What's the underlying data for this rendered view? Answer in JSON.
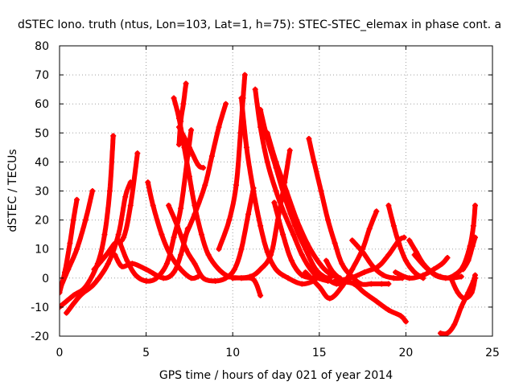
{
  "chart_data": {
    "type": "scatter",
    "title": "dSTEC Iono. truth (ntus, Lon=103, Lat=1, h=75): STEC-STEC_elemax in phase cont. a",
    "xlabel": "GPS time / hours of day 021 of year 2014",
    "ylabel": "dSTEC  / TECUs",
    "xlim": [
      0,
      25
    ],
    "ylim": [
      -20,
      80
    ],
    "xticks": [
      "0",
      "5",
      "10",
      "15",
      "20",
      "25"
    ],
    "yticks": [
      "-20",
      "-10",
      "0",
      "10",
      "20",
      "30",
      "40",
      "50",
      "60",
      "70",
      "80"
    ],
    "grid": true,
    "marker": "plus",
    "color": "#ff0000",
    "series": [
      {
        "points": [
          [
            0.0,
            -5
          ],
          [
            0.3,
            2
          ],
          [
            0.6,
            12
          ],
          [
            0.8,
            20
          ],
          [
            1.0,
            27
          ]
        ]
      },
      {
        "points": [
          [
            0.0,
            -4
          ],
          [
            0.5,
            3
          ],
          [
            1.0,
            10
          ],
          [
            1.5,
            20
          ],
          [
            1.9,
            30
          ]
        ]
      },
      {
        "points": [
          [
            0.0,
            -10
          ],
          [
            0.8,
            -6
          ],
          [
            1.5,
            -3
          ],
          [
            2.2,
            5
          ],
          [
            2.6,
            15
          ],
          [
            2.9,
            30
          ],
          [
            3.1,
            49
          ]
        ]
      },
      {
        "points": [
          [
            0.4,
            -12
          ],
          [
            1.2,
            -6
          ],
          [
            2.0,
            -2
          ],
          [
            2.8,
            5
          ],
          [
            3.4,
            15
          ],
          [
            3.8,
            28
          ],
          [
            4.1,
            33
          ]
        ]
      },
      {
        "points": [
          [
            2.0,
            3
          ],
          [
            2.7,
            8
          ],
          [
            3.2,
            12
          ],
          [
            3.7,
            14
          ],
          [
            4.1,
            25
          ],
          [
            4.5,
            43
          ]
        ]
      },
      {
        "points": [
          [
            3.2,
            8
          ],
          [
            3.6,
            4
          ],
          [
            4.2,
            5
          ],
          [
            5.0,
            3
          ],
          [
            6.0,
            0
          ],
          [
            6.6,
            2
          ],
          [
            7.0,
            8
          ],
          [
            7.4,
            17
          ]
        ]
      },
      {
        "points": [
          [
            3.5,
            12
          ],
          [
            3.9,
            6
          ],
          [
            4.4,
            1
          ],
          [
            5.0,
            -1
          ],
          [
            5.6,
            0
          ],
          [
            6.2,
            5
          ],
          [
            6.6,
            14
          ],
          [
            7.0,
            24
          ],
          [
            7.4,
            42
          ],
          [
            7.6,
            51
          ]
        ]
      },
      {
        "points": [
          [
            5.1,
            33
          ],
          [
            5.4,
            25
          ],
          [
            5.9,
            15
          ],
          [
            6.4,
            8
          ],
          [
            7.0,
            3
          ],
          [
            7.6,
            0
          ],
          [
            8.0,
            0.5
          ]
        ]
      },
      {
        "points": [
          [
            6.3,
            25
          ],
          [
            6.8,
            18
          ],
          [
            7.3,
            10
          ],
          [
            7.8,
            5
          ],
          [
            8.3,
            0
          ],
          [
            9.0,
            -1
          ],
          [
            9.6,
            0
          ],
          [
            10.1,
            3
          ],
          [
            10.5,
            10
          ],
          [
            10.9,
            22
          ],
          [
            11.2,
            31
          ]
        ]
      },
      {
        "points": [
          [
            6.6,
            62
          ],
          [
            6.9,
            55
          ],
          [
            7.2,
            45
          ],
          [
            7.5,
            35
          ],
          [
            7.8,
            25
          ],
          [
            8.2,
            15
          ],
          [
            8.6,
            8
          ],
          [
            9.2,
            3
          ],
          [
            9.8,
            0.5
          ],
          [
            10.5,
            0
          ],
          [
            11.2,
            -0.5
          ],
          [
            11.6,
            -6
          ]
        ]
      },
      {
        "points": [
          [
            6.9,
            46
          ],
          [
            7.0,
            54
          ],
          [
            7.15,
            60
          ],
          [
            7.3,
            67
          ]
        ]
      },
      {
        "points": [
          [
            6.9,
            52
          ],
          [
            7.5,
            45
          ],
          [
            8.0,
            39
          ],
          [
            8.3,
            38
          ]
        ]
      },
      {
        "points": [
          [
            7.3,
            15
          ],
          [
            7.8,
            22
          ],
          [
            8.4,
            32
          ],
          [
            8.8,
            42
          ],
          [
            9.2,
            52
          ],
          [
            9.6,
            60
          ]
        ]
      },
      {
        "points": [
          [
            9.2,
            10
          ],
          [
            9.8,
            20
          ],
          [
            10.2,
            32
          ],
          [
            10.45,
            50
          ],
          [
            10.6,
            62
          ],
          [
            10.7,
            70
          ]
        ]
      },
      {
        "points": [
          [
            10.5,
            62
          ],
          [
            10.8,
            45
          ],
          [
            11.2,
            30
          ],
          [
            11.6,
            18
          ],
          [
            12.0,
            9
          ],
          [
            12.5,
            3
          ],
          [
            13.2,
            0
          ],
          [
            14.0,
            -2
          ],
          [
            14.7,
            -1
          ]
        ]
      },
      {
        "points": [
          [
            11.3,
            65
          ],
          [
            11.6,
            52
          ],
          [
            12.0,
            40
          ],
          [
            12.5,
            30
          ],
          [
            13.0,
            22
          ],
          [
            13.5,
            15
          ],
          [
            14.0,
            8
          ],
          [
            14.5,
            3
          ],
          [
            15.0,
            0
          ],
          [
            15.5,
            -1
          ]
        ]
      },
      {
        "points": [
          [
            11.6,
            58
          ],
          [
            12.0,
            48
          ],
          [
            12.5,
            38
          ],
          [
            13.0,
            28
          ],
          [
            13.6,
            18
          ],
          [
            14.2,
            10
          ],
          [
            14.8,
            3
          ],
          [
            15.4,
            0
          ],
          [
            16.0,
            -2
          ],
          [
            16.5,
            -1
          ]
        ]
      },
      {
        "points": [
          [
            12.0,
            50
          ],
          [
            12.5,
            40
          ],
          [
            13.1,
            30
          ],
          [
            13.7,
            20
          ],
          [
            14.3,
            12
          ],
          [
            14.9,
            6
          ],
          [
            15.5,
            2
          ],
          [
            16.2,
            0
          ]
        ]
      },
      {
        "points": [
          [
            10.0,
            0
          ],
          [
            11.0,
            0.5
          ],
          [
            11.6,
            3
          ],
          [
            12.2,
            8
          ],
          [
            12.6,
            20
          ],
          [
            13.0,
            33
          ],
          [
            13.3,
            44
          ]
        ]
      },
      {
        "points": [
          [
            12.4,
            26
          ],
          [
            12.9,
            15
          ],
          [
            13.4,
            6
          ],
          [
            14.0,
            1
          ],
          [
            14.8,
            0
          ],
          [
            15.4,
            0
          ],
          [
            15.9,
            1
          ]
        ]
      },
      {
        "points": [
          [
            14.4,
            48
          ],
          [
            14.7,
            40
          ],
          [
            15.1,
            30
          ],
          [
            15.5,
            20
          ],
          [
            15.9,
            12
          ],
          [
            16.3,
            5
          ],
          [
            16.8,
            1
          ],
          [
            17.4,
            -2
          ],
          [
            18.0,
            -2
          ],
          [
            18.6,
            -2
          ],
          [
            19.0,
            -2
          ]
        ]
      },
      {
        "points": [
          [
            14.2,
            2
          ],
          [
            15.0,
            -3
          ],
          [
            15.6,
            -7
          ],
          [
            16.3,
            -3
          ],
          [
            16.9,
            3
          ],
          [
            17.5,
            10
          ],
          [
            17.9,
            17
          ],
          [
            18.3,
            23
          ]
        ]
      },
      {
        "points": [
          [
            15.4,
            6
          ],
          [
            15.8,
            2
          ],
          [
            16.4,
            -1
          ],
          [
            17.0,
            -2
          ],
          [
            17.6,
            -5
          ],
          [
            18.3,
            -8
          ],
          [
            19.0,
            -11
          ],
          [
            19.7,
            -13
          ],
          [
            20.0,
            -15
          ]
        ]
      },
      {
        "points": [
          [
            15.9,
            -1
          ],
          [
            16.8,
            0
          ],
          [
            17.6,
            2
          ],
          [
            18.4,
            4
          ],
          [
            19.0,
            8
          ],
          [
            19.6,
            13
          ],
          [
            19.9,
            14
          ]
        ]
      },
      {
        "points": [
          [
            16.9,
            13
          ],
          [
            17.5,
            9
          ],
          [
            18.1,
            4
          ],
          [
            18.7,
            1
          ],
          [
            19.3,
            0
          ],
          [
            19.8,
            0
          ]
        ]
      },
      {
        "points": [
          [
            19.0,
            25
          ],
          [
            19.3,
            18
          ],
          [
            19.6,
            12
          ],
          [
            20.0,
            6
          ],
          [
            20.5,
            2
          ],
          [
            21.0,
            0
          ]
        ]
      },
      {
        "points": [
          [
            19.4,
            2
          ],
          [
            20.2,
            0
          ],
          [
            21.0,
            1
          ],
          [
            21.6,
            3
          ],
          [
            22.1,
            5
          ],
          [
            22.4,
            7
          ]
        ]
      },
      {
        "points": [
          [
            20.2,
            13
          ],
          [
            20.6,
            9
          ],
          [
            21.0,
            5
          ],
          [
            21.5,
            2
          ],
          [
            22.0,
            0.5
          ],
          [
            22.6,
            0
          ],
          [
            23.2,
            0.5
          ]
        ]
      },
      {
        "points": [
          [
            20.5,
            8
          ],
          [
            21.1,
            4
          ],
          [
            21.7,
            1
          ],
          [
            22.3,
            0
          ],
          [
            22.8,
            1
          ],
          [
            23.3,
            4
          ],
          [
            23.7,
            11
          ],
          [
            23.9,
            18
          ],
          [
            24.0,
            25
          ]
        ]
      },
      {
        "points": [
          [
            22.0,
            -19
          ],
          [
            22.4,
            -19
          ],
          [
            22.8,
            -16
          ],
          [
            23.2,
            -10
          ],
          [
            23.6,
            -5
          ],
          [
            23.9,
            -1
          ],
          [
            24.0,
            1
          ]
        ]
      },
      {
        "points": [
          [
            22.6,
            0
          ],
          [
            23.0,
            -5
          ],
          [
            23.4,
            -7
          ],
          [
            23.8,
            -5
          ],
          [
            24.0,
            0
          ]
        ]
      },
      {
        "points": [
          [
            23.3,
            3
          ],
          [
            23.6,
            6
          ],
          [
            23.85,
            11
          ],
          [
            24.0,
            14
          ]
        ]
      }
    ]
  }
}
